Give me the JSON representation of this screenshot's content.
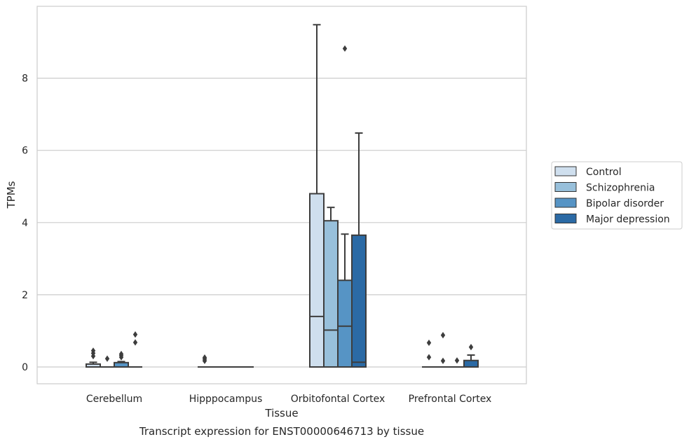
{
  "chart_data": {
    "type": "box",
    "title": "Transcript expression for ENST00000646713 by tissue",
    "xlabel": "Tissue",
    "ylabel": "TPMs",
    "ylim": [
      -0.45,
      10.1
    ],
    "yticks": [
      0,
      2,
      4,
      6,
      8
    ],
    "grid": "horizontal",
    "legend_position": "right",
    "categories": [
      "Cerebellum",
      "Hipppocampus",
      "Orbitofontal Cortex",
      "Prefrontal Cortex"
    ],
    "series": [
      {
        "name": "Control",
        "color": "#cfdfee",
        "boxes": [
          {
            "q1": 0,
            "median": 0,
            "q3": 0.08,
            "whisker_low": 0,
            "whisker_high": 0.13,
            "outliers": [
              0.3,
              0.38,
              0.45
            ]
          },
          {
            "q1": 0,
            "median": 0,
            "q3": 0,
            "whisker_low": 0,
            "whisker_high": 0,
            "outliers": [
              0.17,
              0.22,
              0.26
            ]
          },
          {
            "q1": 0,
            "median": 1.4,
            "q3": 4.8,
            "whisker_low": 0,
            "whisker_high": 9.48,
            "outliers": []
          },
          {
            "q1": 0,
            "median": 0,
            "q3": 0,
            "whisker_low": 0,
            "whisker_high": 0,
            "outliers": [
              0.27,
              0.67
            ]
          }
        ]
      },
      {
        "name": "Schizophrenia",
        "color": "#98c0db",
        "boxes": [
          {
            "q1": 0,
            "median": 0,
            "q3": 0,
            "whisker_low": 0,
            "whisker_high": 0,
            "outliers": [
              0.23
            ]
          },
          {
            "q1": 0,
            "median": 0,
            "q3": 0,
            "whisker_low": 0,
            "whisker_high": 0,
            "outliers": []
          },
          {
            "q1": 0,
            "median": 1.02,
            "q3": 4.05,
            "whisker_low": 0,
            "whisker_high": 4.42,
            "outliers": []
          },
          {
            "q1": 0,
            "median": 0,
            "q3": 0,
            "whisker_low": 0,
            "whisker_high": 0,
            "outliers": [
              0.17,
              0.88
            ]
          }
        ]
      },
      {
        "name": "Bipolar disorder",
        "color": "#5694c5",
        "boxes": [
          {
            "q1": 0,
            "median": 0,
            "q3": 0.12,
            "whisker_low": 0,
            "whisker_high": 0.15,
            "outliers": [
              0.27,
              0.32,
              0.36
            ]
          },
          {
            "q1": 0,
            "median": 0,
            "q3": 0,
            "whisker_low": 0,
            "whisker_high": 0,
            "outliers": []
          },
          {
            "q1": 0,
            "median": 1.13,
            "q3": 2.4,
            "whisker_low": 0,
            "whisker_high": 3.68,
            "outliers": [
              8.82
            ]
          },
          {
            "q1": 0,
            "median": 0,
            "q3": 0,
            "whisker_low": 0,
            "whisker_high": 0,
            "outliers": [
              0.18
            ]
          }
        ]
      },
      {
        "name": "Major depression",
        "color": "#2b6aa5",
        "boxes": [
          {
            "q1": 0,
            "median": 0,
            "q3": 0,
            "whisker_low": 0,
            "whisker_high": 0,
            "outliers": [
              0.68,
              0.9
            ]
          },
          {
            "q1": 0,
            "median": 0,
            "q3": 0,
            "whisker_low": 0,
            "whisker_high": 0,
            "outliers": []
          },
          {
            "q1": 0,
            "median": 0.13,
            "q3": 3.65,
            "whisker_low": 0,
            "whisker_high": 6.48,
            "outliers": []
          },
          {
            "q1": 0,
            "median": 0,
            "q3": 0.18,
            "whisker_low": 0,
            "whisker_high": 0.33,
            "outliers": [
              0.55
            ]
          }
        ]
      }
    ]
  }
}
